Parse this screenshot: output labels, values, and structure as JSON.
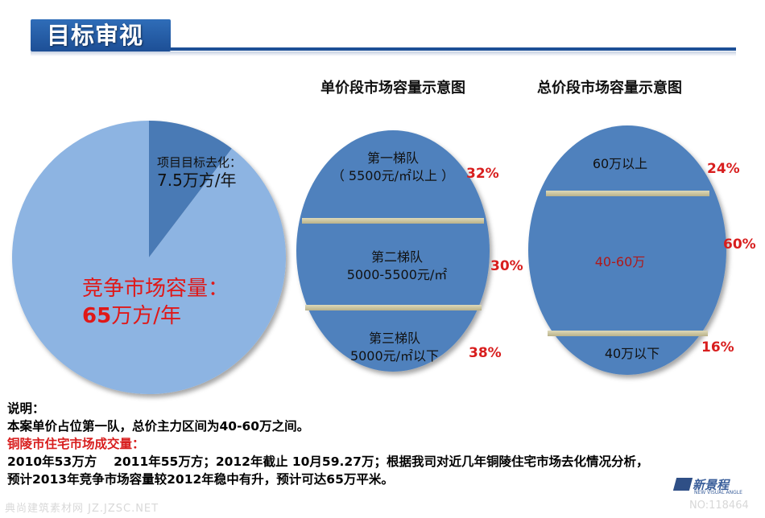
{
  "header": {
    "title": "目标审视"
  },
  "chart_data": [
    {
      "type": "pie",
      "slices": [
        {
          "name": "项目目标去化",
          "value": 7.5,
          "unit": "万方/年",
          "color": "#4a7ab5"
        },
        {
          "name": "竞争市场容量",
          "value": 65,
          "unit": "万方/年",
          "color": "#8db4e2"
        }
      ],
      "labels": {
        "project_line1": "项目目标去化：",
        "project_line2": "7.5万方/年",
        "competition_line1": "竞争市场容量：",
        "competition_number": "65",
        "competition_unit": "万方/年"
      }
    },
    {
      "type": "table",
      "title": "单价段市场容量示意图",
      "tiers": [
        {
          "line1": "第一梯队",
          "line2": "（ 5500元/㎡以上 ）",
          "share": "32%"
        },
        {
          "line1": "第二梯队",
          "line2": "5000-5500元/㎡",
          "share": "30%"
        },
        {
          "line1": "第三梯队",
          "line2": "5000元/㎡以下",
          "share": "38%"
        }
      ]
    },
    {
      "type": "table",
      "title": "总价段市场容量示意图",
      "tiers": [
        {
          "line1": "60万以上",
          "share": "24%"
        },
        {
          "line1": "40-60万",
          "share": "60%"
        },
        {
          "line1": "40万以下",
          "share": "16%"
        }
      ]
    }
  ],
  "notes": {
    "heading": "说明：",
    "line1": "本案单价占位第一队，总价主力区间为40-60万之间。",
    "subheading": "铜陵市住宅市场成交量：",
    "line2": "2010年53万方　 2011年55万方；2012年截止 10月59.27万；根据我司对近几年铜陵住宅市场去化情况分析，",
    "line3": "预计2013年竞争市场容量较2012年稳中有升，预计可达65万平米。"
  },
  "footer": {
    "watermark_left": "典尚建筑素材网 JZ.JZSC.NET",
    "watermark_right": "NO:118464",
    "logo_text": "新景程",
    "logo_sub": "NEW VISUAL ANGLE"
  },
  "colors": {
    "title_bar": "#1d4f96",
    "ellipse": "#4f81bd",
    "divider": "#c9c39a",
    "percent": "#d81e1e"
  }
}
